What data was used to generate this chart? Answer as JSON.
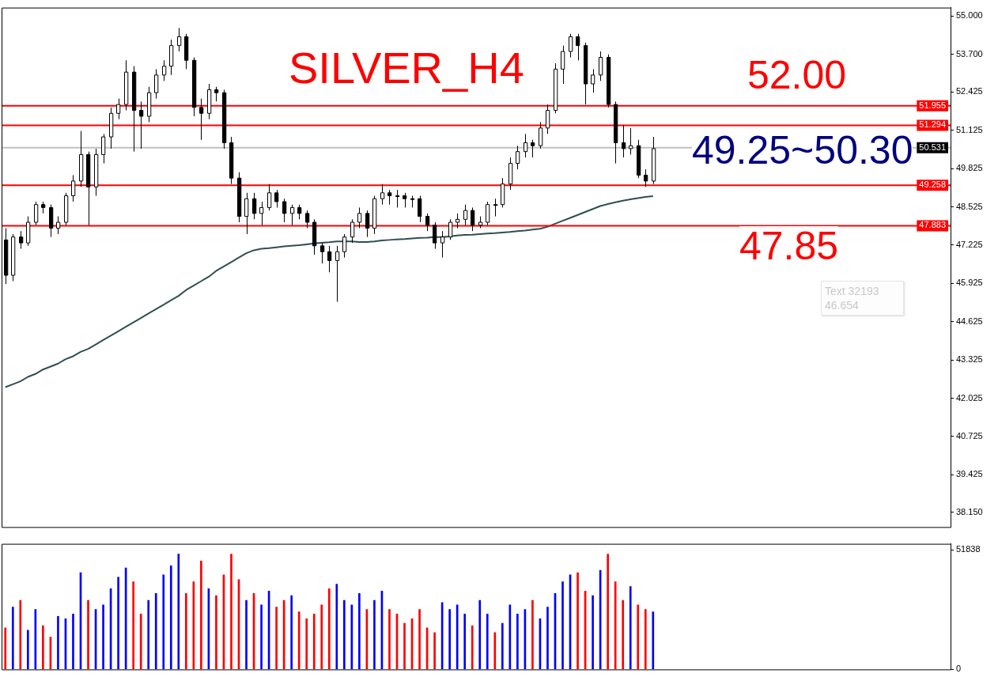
{
  "chart_data": [
    {
      "type": "candlestick",
      "title": "SILVER_H4",
      "tick_labels": "y",
      "marker": "none",
      "categories": [
        null,
        null,
        null,
        null,
        null,
        null,
        null,
        null,
        null,
        null,
        null,
        null,
        null,
        null,
        null,
        null,
        null,
        null,
        null,
        null,
        null,
        null,
        null,
        null,
        null,
        null,
        null,
        null,
        null,
        null,
        null,
        null,
        null,
        null,
        null,
        null,
        null,
        null,
        null,
        null,
        null,
        null,
        null,
        null,
        null,
        null,
        null,
        null,
        null,
        null,
        null,
        null,
        null,
        null,
        null,
        null,
        null,
        null,
        null,
        null,
        null,
        null,
        null,
        null,
        null,
        null,
        null,
        null,
        null,
        null,
        null,
        null,
        null,
        null,
        null,
        null,
        null,
        null,
        null,
        null,
        null,
        null,
        null,
        null,
        null,
        null,
        null,
        null,
        null,
        null,
        null,
        null,
        null,
        null,
        null,
        null,
        null,
        null,
        null,
        null,
        null,
        null,
        null,
        null,
        null,
        null,
        null,
        null,
        null,
        null,
        null,
        null,
        null,
        null,
        null,
        null,
        null,
        null,
        null,
        null,
        null,
        null,
        null,
        null,
        null,
        null
      ],
      "ohlc": [
        [
          47.4,
          47.8,
          45.9,
          46.2
        ],
        [
          46.2,
          47.6,
          46.0,
          47.5
        ],
        [
          47.5,
          47.7,
          47.1,
          47.3
        ],
        [
          47.3,
          48.2,
          47.2,
          48.0
        ],
        [
          48.0,
          48.7,
          47.9,
          48.6
        ],
        [
          48.6,
          48.7,
          48.3,
          48.5
        ],
        [
          48.5,
          48.6,
          47.5,
          47.8
        ],
        [
          47.8,
          48.2,
          47.6,
          48.0
        ],
        [
          48.0,
          49.0,
          47.9,
          48.9
        ],
        [
          48.9,
          49.6,
          48.7,
          49.4
        ],
        [
          49.4,
          51.1,
          49.2,
          50.3
        ],
        [
          50.3,
          50.4,
          47.9,
          49.2
        ],
        [
          49.2,
          50.5,
          48.9,
          50.3
        ],
        [
          50.3,
          51.0,
          50.0,
          50.9
        ],
        [
          50.9,
          51.9,
          50.5,
          51.7
        ],
        [
          51.7,
          52.2,
          51.5,
          52.0
        ],
        [
          52.0,
          53.5,
          51.8,
          53.1
        ],
        [
          53.1,
          53.3,
          50.4,
          51.8
        ],
        [
          51.8,
          52.1,
          50.5,
          51.6
        ],
        [
          51.6,
          52.6,
          51.4,
          52.4
        ],
        [
          52.4,
          53.2,
          52.2,
          53.0
        ],
        [
          53.0,
          53.5,
          52.8,
          53.3
        ],
        [
          53.3,
          54.2,
          53.0,
          54.0
        ],
        [
          54.0,
          54.6,
          53.8,
          54.3
        ],
        [
          54.3,
          54.4,
          53.2,
          53.5
        ],
        [
          53.5,
          53.6,
          51.6,
          51.9
        ],
        [
          51.9,
          52.2,
          50.8,
          51.7
        ],
        [
          51.7,
          52.7,
          51.5,
          52.5
        ],
        [
          52.5,
          52.6,
          52.1,
          52.4
        ],
        [
          52.4,
          52.5,
          50.5,
          50.7
        ],
        [
          50.7,
          50.9,
          49.3,
          49.5
        ],
        [
          49.5,
          49.7,
          48.0,
          48.2
        ],
        [
          48.2,
          49.0,
          47.6,
          48.8
        ],
        [
          48.8,
          49.0,
          48.1,
          48.3
        ],
        [
          48.3,
          48.7,
          47.9,
          48.5
        ],
        [
          48.5,
          49.3,
          48.4,
          49.0
        ],
        [
          49.0,
          49.1,
          48.5,
          48.7
        ],
        [
          48.7,
          48.8,
          48.0,
          48.3
        ],
        [
          48.3,
          48.6,
          47.9,
          48.5
        ],
        [
          48.5,
          48.6,
          48.1,
          48.3
        ],
        [
          48.3,
          48.4,
          47.8,
          48.0
        ],
        [
          48.0,
          48.1,
          46.9,
          47.2
        ],
        [
          47.2,
          47.3,
          46.6,
          47.0
        ],
        [
          47.0,
          47.2,
          46.3,
          46.7
        ],
        [
          46.7,
          47.2,
          45.3,
          47.0
        ],
        [
          47.0,
          47.6,
          46.8,
          47.5
        ],
        [
          47.5,
          48.1,
          47.3,
          48.0
        ],
        [
          48.0,
          48.5,
          47.8,
          48.3
        ],
        [
          48.3,
          48.4,
          47.5,
          47.8
        ],
        [
          47.8,
          48.9,
          47.6,
          48.8
        ],
        [
          48.8,
          49.3,
          48.6,
          49.0
        ],
        [
          49.0,
          49.1,
          48.6,
          48.9
        ],
        [
          48.9,
          49.1,
          48.5,
          48.9
        ],
        [
          48.9,
          49.0,
          48.5,
          48.8
        ],
        [
          48.8,
          48.9,
          48.5,
          48.8
        ],
        [
          48.8,
          48.9,
          48.0,
          48.2
        ],
        [
          48.2,
          48.3,
          47.7,
          47.9
        ],
        [
          47.9,
          48.0,
          47.1,
          47.3
        ],
        [
          47.3,
          47.7,
          46.8,
          47.5
        ],
        [
          47.5,
          48.1,
          47.4,
          48.0
        ],
        [
          48.0,
          48.3,
          47.8,
          48.1
        ],
        [
          48.1,
          48.6,
          47.9,
          48.4
        ],
        [
          48.4,
          48.5,
          47.7,
          47.9
        ],
        [
          47.9,
          48.2,
          47.8,
          48.0
        ],
        [
          48.0,
          48.7,
          47.9,
          48.6
        ],
        [
          48.6,
          48.8,
          48.2,
          48.6
        ],
        [
          48.6,
          49.5,
          48.5,
          49.3
        ],
        [
          49.3,
          50.2,
          49.1,
          50.0
        ],
        [
          50.0,
          50.6,
          49.8,
          50.4
        ],
        [
          50.4,
          51.0,
          50.2,
          50.7
        ],
        [
          50.7,
          50.8,
          50.2,
          50.6
        ],
        [
          50.6,
          51.4,
          50.5,
          51.2
        ],
        [
          51.2,
          52.0,
          51.0,
          51.8
        ],
        [
          51.8,
          53.4,
          51.7,
          53.2
        ],
        [
          53.2,
          54.0,
          52.7,
          53.8
        ],
        [
          53.8,
          54.4,
          53.6,
          54.3
        ],
        [
          54.3,
          54.4,
          53.5,
          54.0
        ],
        [
          54.0,
          54.1,
          52.0,
          52.7
        ],
        [
          52.7,
          53.2,
          52.4,
          53.0
        ],
        [
          53.0,
          53.8,
          52.8,
          53.6
        ],
        [
          53.6,
          53.7,
          51.9,
          52.0
        ],
        [
          52.0,
          52.1,
          50.0,
          50.7
        ],
        [
          50.7,
          51.3,
          50.2,
          50.5
        ],
        [
          50.5,
          51.2,
          50.3,
          50.6
        ],
        [
          50.6,
          50.8,
          49.5,
          49.6
        ],
        [
          49.6,
          49.8,
          49.2,
          49.4
        ],
        [
          49.4,
          50.9,
          49.3,
          50.5
        ],
        null,
        null,
        null,
        null,
        null,
        null,
        null,
        null,
        null,
        null,
        null,
        null,
        null,
        null,
        null,
        null,
        null,
        null,
        null,
        null,
        null,
        null,
        null,
        null,
        null,
        null,
        null,
        null,
        null,
        null,
        null,
        null,
        null,
        null,
        null,
        null,
        null,
        null,
        null
      ],
      "series": [
        {
          "type": "line",
          "color": "#2f4f4f",
          "values": [
            42.4,
            42.5,
            42.6,
            42.75,
            42.85,
            43.0,
            43.1,
            43.2,
            43.35,
            43.45,
            43.6,
            43.7,
            43.85,
            44.0,
            44.15,
            44.3,
            44.45,
            44.6,
            44.75,
            44.9,
            45.05,
            45.2,
            45.35,
            45.5,
            45.7,
            45.85,
            46.0,
            46.15,
            46.35,
            46.5,
            46.65,
            46.8,
            46.95,
            47.05,
            47.1,
            47.12,
            47.15,
            47.18,
            47.2,
            47.22,
            47.25,
            47.28,
            47.3,
            47.32,
            47.35,
            47.35,
            47.35,
            47.33,
            47.33,
            47.35,
            47.38,
            47.4,
            47.42,
            47.43,
            47.45,
            47.47,
            47.48,
            47.5,
            47.5,
            47.52,
            47.55,
            47.57,
            47.58,
            47.6,
            47.62,
            47.63,
            47.65,
            47.67,
            47.7,
            47.72,
            47.75,
            47.78,
            47.85,
            47.95,
            48.05,
            48.15,
            48.25,
            48.35,
            48.45,
            48.55,
            48.62,
            48.68,
            48.73,
            48.78,
            48.82,
            48.86,
            48.89,
            null,
            null,
            null,
            null,
            null,
            null,
            null,
            null,
            null,
            null,
            null,
            null,
            null,
            null,
            null,
            null,
            null,
            null,
            null,
            null,
            null,
            null,
            null,
            null,
            null,
            null,
            null,
            null,
            null,
            null,
            null,
            null,
            null,
            null,
            null,
            null,
            null,
            null,
            null
          ]
        }
      ],
      "ylim": [
        37.65,
        55.29
      ],
      "yticks": [
        {
          "value": 55.0,
          "label": "55.000"
        },
        {
          "value": 53.7,
          "label": "53.700"
        },
        {
          "value": 52.425,
          "label": "52.425"
        },
        {
          "value": 51.125,
          "label": "51.125"
        },
        {
          "value": 49.825,
          "label": "49.825"
        },
        {
          "value": 48.525,
          "label": "48.525"
        },
        {
          "value": 47.225,
          "label": "47.225"
        },
        {
          "value": 45.925,
          "label": "45.925"
        },
        {
          "value": 44.625,
          "label": "44.625"
        },
        {
          "value": 43.325,
          "label": "43.325"
        },
        {
          "value": 42.025,
          "label": "42.025"
        },
        {
          "value": 40.725,
          "label": "40.725"
        },
        {
          "value": 39.425,
          "label": "39.425"
        },
        {
          "value": 38.15,
          "label": "38.150"
        }
      ],
      "ref_lines": [
        {
          "axis": "y",
          "value": 51.955,
          "label": "51.955",
          "color": "#ff0000"
        },
        {
          "axis": "y",
          "value": 51.294,
          "label": "51.294",
          "color": "#ff0000"
        },
        {
          "axis": "y",
          "value": 50.531,
          "label": "50.531",
          "color": "#c0c0c0"
        },
        {
          "axis": "y",
          "value": 49.258,
          "label": "49.258",
          "color": "#ff0000"
        },
        {
          "axis": "y",
          "value": 47.883,
          "label": "47.883",
          "color": "#ff0000"
        }
      ],
      "annotations": [
        "52.00",
        "49.25~50.30",
        "47.85",
        "Text 32193\n46.654"
      ]
    },
    {
      "type": "bar",
      "tick_labels": "y",
      "categories": [
        null,
        null,
        null,
        null,
        null,
        null,
        null,
        null,
        null,
        null,
        null,
        null,
        null,
        null,
        null,
        null,
        null,
        null,
        null,
        null,
        null,
        null,
        null,
        null,
        null,
        null,
        null,
        null,
        null,
        null,
        null,
        null,
        null,
        null,
        null,
        null,
        null,
        null,
        null,
        null,
        null,
        null,
        null,
        null,
        null,
        null,
        null,
        null,
        null,
        null,
        null,
        null,
        null,
        null,
        null,
        null,
        null,
        null,
        null,
        null,
        null,
        null,
        null,
        null,
        null,
        null,
        null,
        null,
        null,
        null,
        null,
        null,
        null,
        null,
        null,
        null,
        null,
        null,
        null,
        null,
        null,
        null,
        null,
        null,
        null,
        null,
        null,
        null,
        null,
        null,
        null,
        null,
        null,
        null,
        null,
        null,
        null,
        null,
        null,
        null,
        null,
        null,
        null,
        null,
        null,
        null,
        null,
        null,
        null,
        null,
        null,
        null,
        null,
        null,
        null,
        null,
        null,
        null,
        null,
        null,
        null,
        null,
        null,
        null,
        null,
        null
      ],
      "values": [
        18000,
        27000,
        30000,
        17000,
        26000,
        19000,
        14000,
        23000,
        22000,
        24000,
        42000,
        30000,
        26000,
        28000,
        35000,
        40000,
        44000,
        38000,
        24000,
        30000,
        33000,
        41000,
        45000,
        50000,
        33000,
        38000,
        47000,
        35000,
        32000,
        41000,
        50000,
        39000,
        30000,
        33000,
        28000,
        34000,
        27000,
        30000,
        32000,
        25000,
        22000,
        24000,
        28000,
        35000,
        37000,
        30000,
        28000,
        33000,
        26000,
        30000,
        34000,
        26000,
        24000,
        20000,
        22000,
        26000,
        18000,
        16000,
        29000,
        26000,
        28000,
        24000,
        19000,
        30000,
        24000,
        16000,
        20000,
        28000,
        24000,
        26000,
        30000,
        22000,
        27000,
        33000,
        38000,
        41000,
        42000,
        34000,
        32000,
        43000,
        50000,
        38000,
        30000,
        36000,
        28000,
        26000,
        25000,
        null,
        null,
        null,
        null,
        null,
        null,
        null,
        null,
        null,
        null,
        null,
        null,
        null,
        null,
        null,
        null,
        null,
        null,
        null,
        null,
        null,
        null,
        null,
        null,
        null,
        null,
        null,
        null,
        null,
        null,
        null,
        null,
        null,
        null,
        null,
        null,
        null,
        null,
        null
      ],
      "colors": [
        "#ff0000",
        "#0000ff",
        "#ff0000",
        "#0000ff",
        "#0000ff",
        "#ff0000",
        "#ff0000",
        "#0000ff",
        "#0000ff",
        "#0000ff",
        "#0000ff",
        "#ff0000",
        "#0000ff",
        "#0000ff",
        "#0000ff",
        "#0000ff",
        "#0000ff",
        "#ff0000",
        "#ff0000",
        "#0000ff",
        "#0000ff",
        "#0000ff",
        "#0000ff",
        "#0000ff",
        "#ff0000",
        "#ff0000",
        "#ff0000",
        "#0000ff",
        "#ff0000",
        "#ff0000",
        "#ff0000",
        "#ff0000",
        "#0000ff",
        "#ff0000",
        "#0000ff",
        "#0000ff",
        "#ff0000",
        "#ff0000",
        "#0000ff",
        "#ff0000",
        "#ff0000",
        "#ff0000",
        "#ff0000",
        "#ff0000",
        "#0000ff",
        "#0000ff",
        "#0000ff",
        "#0000ff",
        "#ff0000",
        "#0000ff",
        "#0000ff",
        "#ff0000",
        "#ff0000",
        "#ff0000",
        "#ff0000",
        "#ff0000",
        "#ff0000",
        "#ff0000",
        "#0000ff",
        "#0000ff",
        "#0000ff",
        "#0000ff",
        "#ff0000",
        "#0000ff",
        "#0000ff",
        "#ff0000",
        "#0000ff",
        "#0000ff",
        "#0000ff",
        "#0000ff",
        "#ff0000",
        "#0000ff",
        "#0000ff",
        "#0000ff",
        "#0000ff",
        "#0000ff",
        "#ff0000",
        "#ff0000",
        "#0000ff",
        "#0000ff",
        "#ff0000",
        "#ff0000",
        "#ff0000",
        "#0000ff",
        "#ff0000",
        "#ff0000",
        "#0000ff",
        null,
        null,
        null,
        null,
        null,
        null,
        null,
        null,
        null,
        null,
        null,
        null,
        null,
        null,
        null,
        null,
        null,
        null,
        null,
        null,
        null,
        null,
        null,
        null,
        null,
        null,
        null,
        null,
        null,
        null,
        null,
        null,
        null,
        null,
        null,
        null,
        null,
        null,
        null
      ],
      "ylim": [
        0,
        54480
      ],
      "yticks": [
        0,
        51838
      ]
    }
  ]
}
